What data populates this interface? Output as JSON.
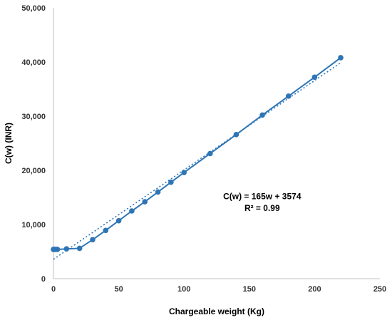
{
  "chart_data": {
    "type": "scatter",
    "title": "",
    "xlabel": "Chargeable weight (Kg)",
    "ylabel": "C(w)  (INR)",
    "xlim": [
      0,
      250
    ],
    "ylim": [
      0,
      50000
    ],
    "x_ticks": [
      0,
      50,
      100,
      150,
      200,
      250
    ],
    "y_ticks": [
      0,
      10000,
      20000,
      30000,
      40000,
      50000
    ],
    "x_tick_labels": [
      "0",
      "50",
      "100",
      "150",
      "200",
      "250"
    ],
    "y_tick_labels": [
      "0",
      "10,000",
      "20,000",
      "30,000",
      "40,000",
      "50,000"
    ],
    "grid": false,
    "series": [
      {
        "color": "#2E75B6",
        "marker": "circle",
        "line": "solid",
        "x": [
          0,
          0.5,
          1,
          2,
          3,
          10,
          20,
          30,
          40,
          50,
          60,
          70,
          80,
          90,
          100,
          120,
          140,
          160,
          180,
          200,
          220
        ],
        "y": [
          5400,
          5400,
          5400,
          5400,
          5400,
          5500,
          5600,
          7200,
          8900,
          10700,
          12500,
          14200,
          16000,
          17800,
          19600,
          23100,
          26600,
          30200,
          33700,
          37200,
          40800
        ]
      }
    ],
    "trendline": {
      "type": "linear",
      "slope": 165,
      "intercept": 3574,
      "x_range": [
        0,
        220
      ],
      "color": "#2E75B6",
      "style": "dotted"
    },
    "annotations": [
      {
        "text": "C(w) = 165w + 3574",
        "x": 150,
        "y": 15200
      },
      {
        "text": "R² = 0.99",
        "x": 150,
        "y": 13000
      }
    ]
  }
}
